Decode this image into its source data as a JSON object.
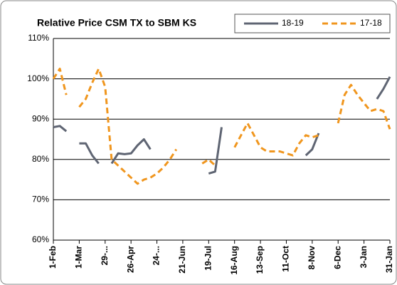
{
  "chart_data": {
    "type": "line",
    "title": "Relative Price CSM TX to SBM KS",
    "categories": [
      "1-Feb",
      null,
      null,
      null,
      "1-Mar",
      null,
      null,
      null,
      "29-...",
      null,
      null,
      null,
      "26-Apr",
      null,
      null,
      null,
      "24-...",
      null,
      null,
      null,
      "21-Jun",
      null,
      null,
      null,
      "19-Jul",
      null,
      null,
      null,
      "16-Aug",
      null,
      null,
      null,
      "13-Sep",
      null,
      null,
      null,
      "11-Oct",
      null,
      null,
      null,
      "8-Nov",
      null,
      null,
      null,
      "6-Dec",
      null,
      null,
      null,
      "3-Jan",
      null,
      null,
      null,
      "31-Jan"
    ],
    "series": [
      {
        "name": "18-19",
        "color": "#5f6573",
        "line_style": "solid",
        "values": [
          88,
          88.3,
          87,
          null,
          84,
          84,
          81,
          79,
          null,
          79,
          81.5,
          81.3,
          81.5,
          83.5,
          85,
          82.5,
          null,
          null,
          null,
          null,
          null,
          null,
          null,
          null,
          76.5,
          77,
          88,
          null,
          null,
          null,
          null,
          null,
          null,
          null,
          null,
          null,
          null,
          null,
          null,
          81,
          82.5,
          86.5,
          null,
          null,
          null,
          null,
          null,
          null,
          null,
          null,
          95,
          97.5,
          100.5
        ]
      },
      {
        "name": "17-18",
        "color": "#f0961e",
        "line_style": "dashed",
        "values": [
          100,
          102.5,
          96,
          null,
          93,
          95,
          99,
          102.5,
          98,
          80,
          78.5,
          77,
          75.5,
          74,
          75,
          75.5,
          76.5,
          78,
          80,
          82.5,
          null,
          null,
          null,
          79,
          80,
          78.5,
          null,
          null,
          83,
          86,
          89,
          86,
          83,
          82,
          82,
          82,
          81.5,
          81,
          84,
          86,
          85.5,
          86,
          null,
          null,
          89,
          96,
          98.5,
          96,
          94,
          92,
          92.5,
          92,
          87.5
        ]
      }
    ],
    "ylim": [
      60,
      110
    ],
    "yticks": [
      {
        "value": 60,
        "label": "60%"
      },
      {
        "value": 70,
        "label": "70%"
      },
      {
        "value": 80,
        "label": "80%"
      },
      {
        "value": 90,
        "label": "90%"
      },
      {
        "value": 100,
        "label": "100%"
      },
      {
        "value": 110,
        "label": "110%"
      }
    ],
    "grid": true,
    "legend": "top-right"
  }
}
